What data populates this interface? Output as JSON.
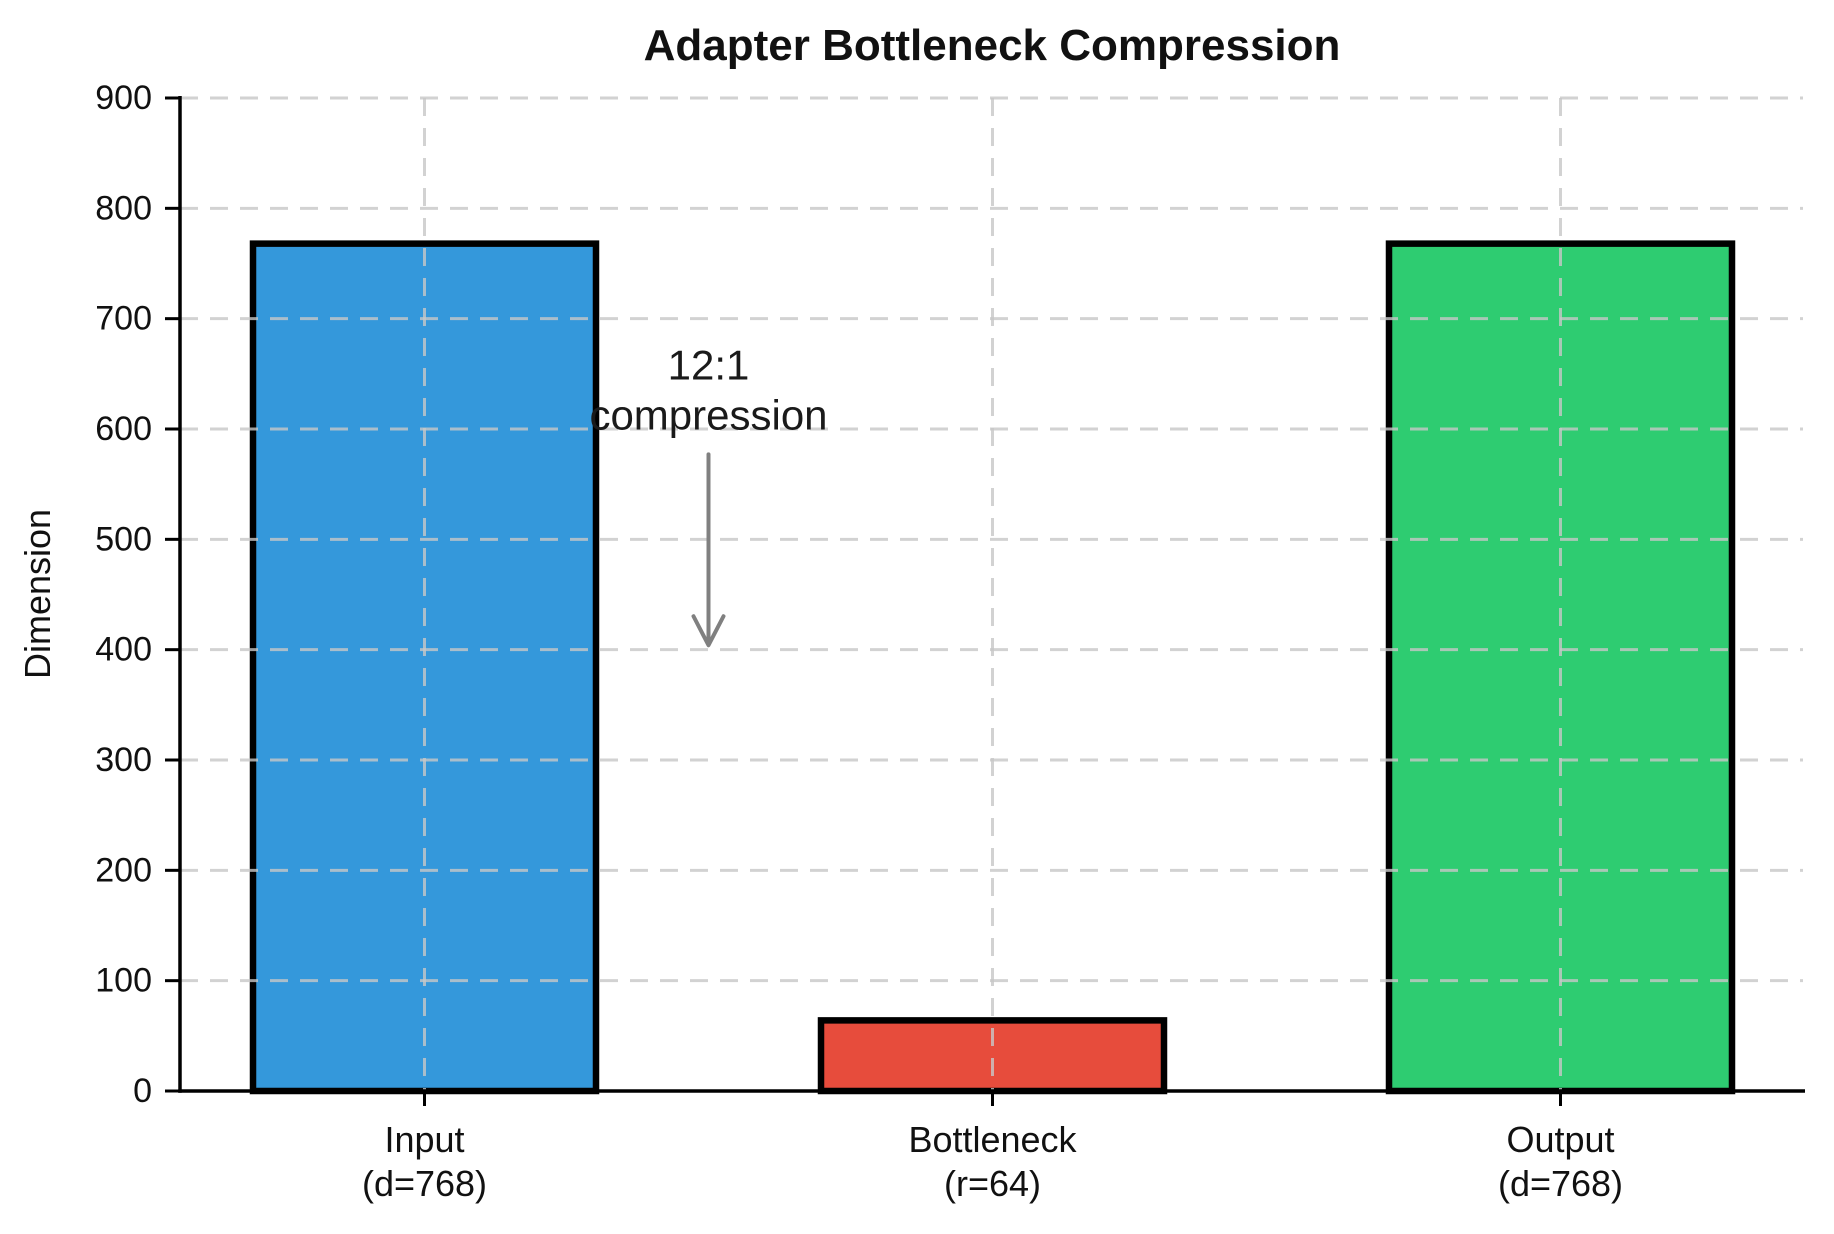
{
  "chart_data": {
    "type": "bar",
    "title": "Adapter Bottleneck Compression",
    "xlabel": "",
    "ylabel": "Dimension",
    "categories": [
      {
        "label": "Input",
        "sublabel": "(d=768)"
      },
      {
        "label": "Bottleneck",
        "sublabel": "(r=64)"
      },
      {
        "label": "Output",
        "sublabel": "(d=768)"
      }
    ],
    "values": [
      768,
      64,
      768
    ],
    "bar_colors": [
      "#3498db",
      "#e74c3c",
      "#2ecc71"
    ],
    "bar_edge_color": "#000000",
    "ylim": [
      0,
      900
    ],
    "yticks": [
      0,
      100,
      200,
      300,
      400,
      500,
      600,
      700,
      800,
      900
    ],
    "grid": true,
    "grid_style": "dashed",
    "grid_color": "#c8c8c8",
    "legend": "none",
    "annotation": {
      "lines": [
        "12:1",
        "compression"
      ],
      "x_category_units": 0.5,
      "text_top_value": 645,
      "arrow_tip_value": 404,
      "text_color": "#1a1a1a",
      "arrow_color": "#808080"
    },
    "axis_color": "#000000",
    "background_color": "#ffffff"
  }
}
